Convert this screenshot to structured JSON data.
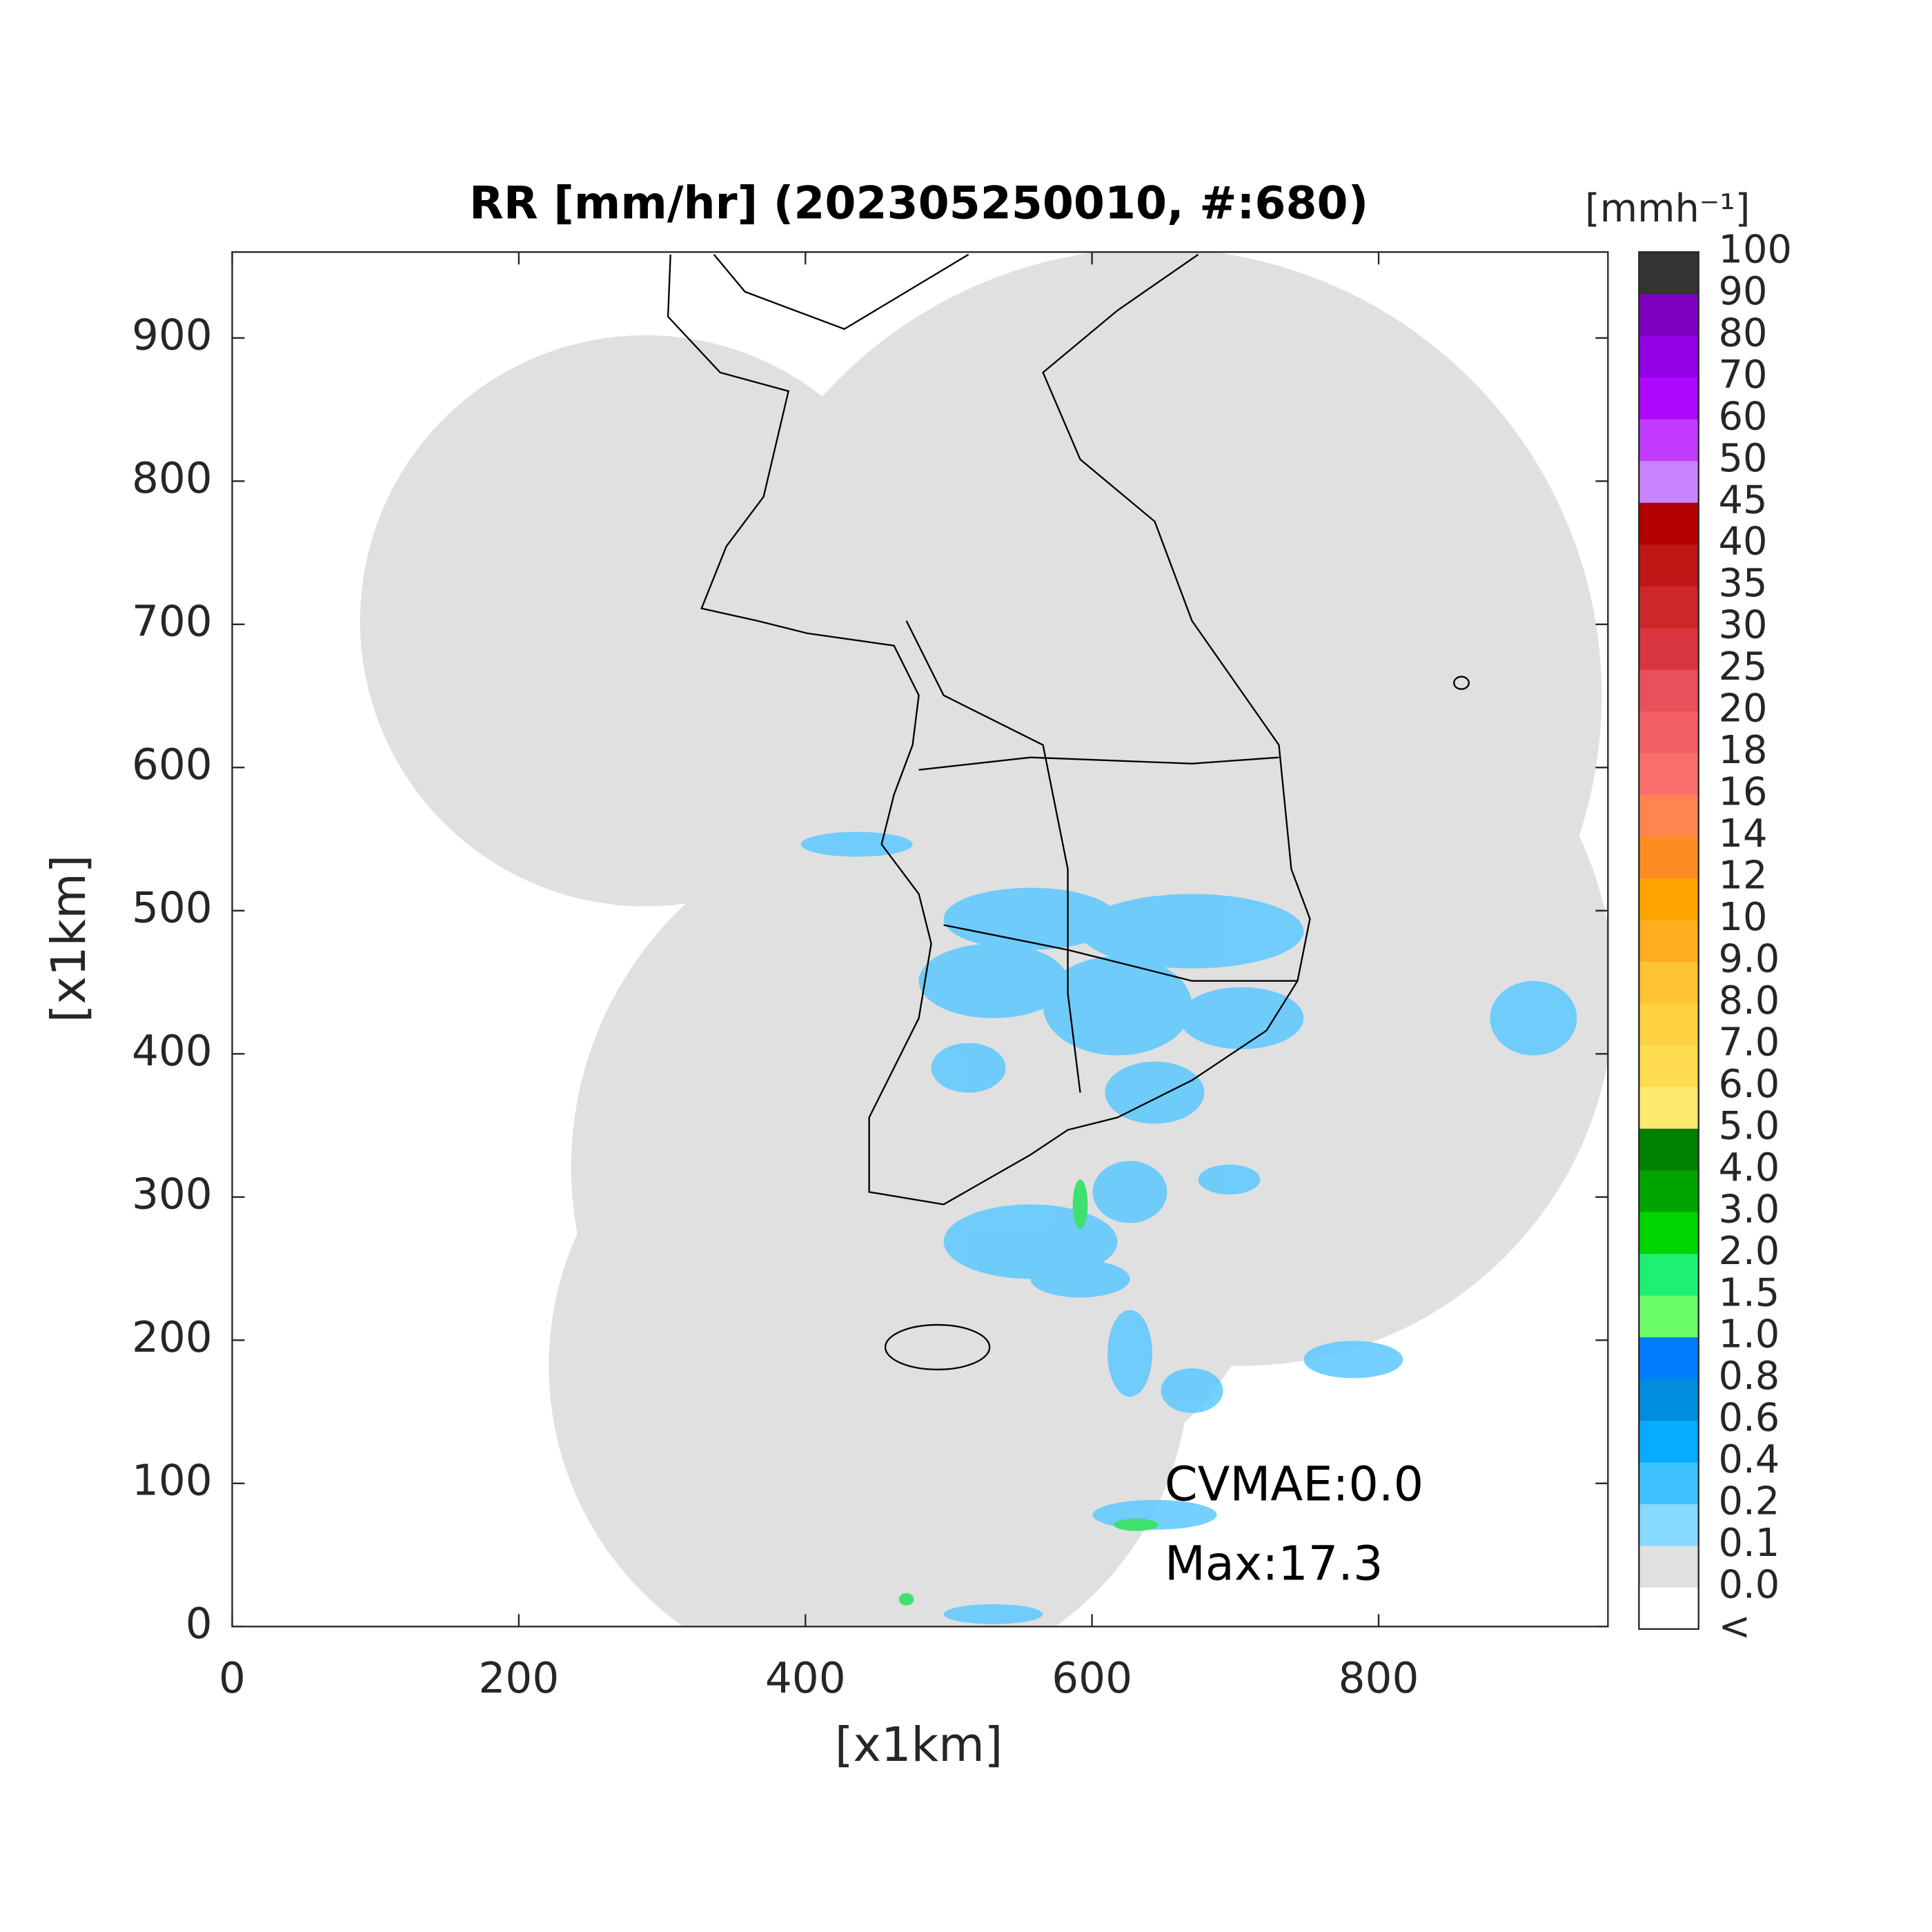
{
  "chart_data": {
    "type": "radar-map",
    "title": "RR [mm/hr] (202305250010, #:680)",
    "xlabel": "[x1km]",
    "ylabel": "[x1km]",
    "xlim": [
      0,
      960
    ],
    "ylim": [
      0,
      960
    ],
    "xticks": [
      0,
      200,
      400,
      600,
      800
    ],
    "yticks": [
      0,
      100,
      200,
      300,
      400,
      500,
      600,
      700,
      800,
      900
    ],
    "annotations": [
      "CVMAE:0.0",
      "Max:17.3"
    ],
    "colorbar": {
      "label": "[mmh⁻¹]",
      "levels": [
        "<",
        "0.0",
        "0.1",
        "0.2",
        "0.4",
        "0.6",
        "0.8",
        "1.0",
        "1.5",
        "2.0",
        "3.0",
        "4.0",
        "5.0",
        "6.0",
        "7.0",
        "8.0",
        "9.0",
        "10",
        "12",
        "14",
        "16",
        "18",
        "20",
        "25",
        "30",
        "35",
        "40",
        "45",
        "50",
        "60",
        "70",
        "80",
        "90",
        "100"
      ],
      "colors": [
        "#ffffff",
        "#e0e0e0",
        "#87d9ff",
        "#3ec1ff",
        "#07abff",
        "#008dde",
        "#007dff",
        "#69fc69",
        "#1ef073",
        "#00d500",
        "#00a400",
        "#008000",
        "#ffea6e",
        "#ffdb4f",
        "#ffd041",
        "#ffc232",
        "#ffae1d",
        "#ffa300",
        "#ff8c22",
        "#ff8450",
        "#fa6d6d",
        "#f26064",
        "#e8505a",
        "#d9363f",
        "#cc2828",
        "#c01616",
        "#b30000",
        "#c884ff",
        "#c23bff",
        "#ad07ff",
        "#9200e4",
        "#7f00bf",
        "#333333"
      ]
    }
  }
}
